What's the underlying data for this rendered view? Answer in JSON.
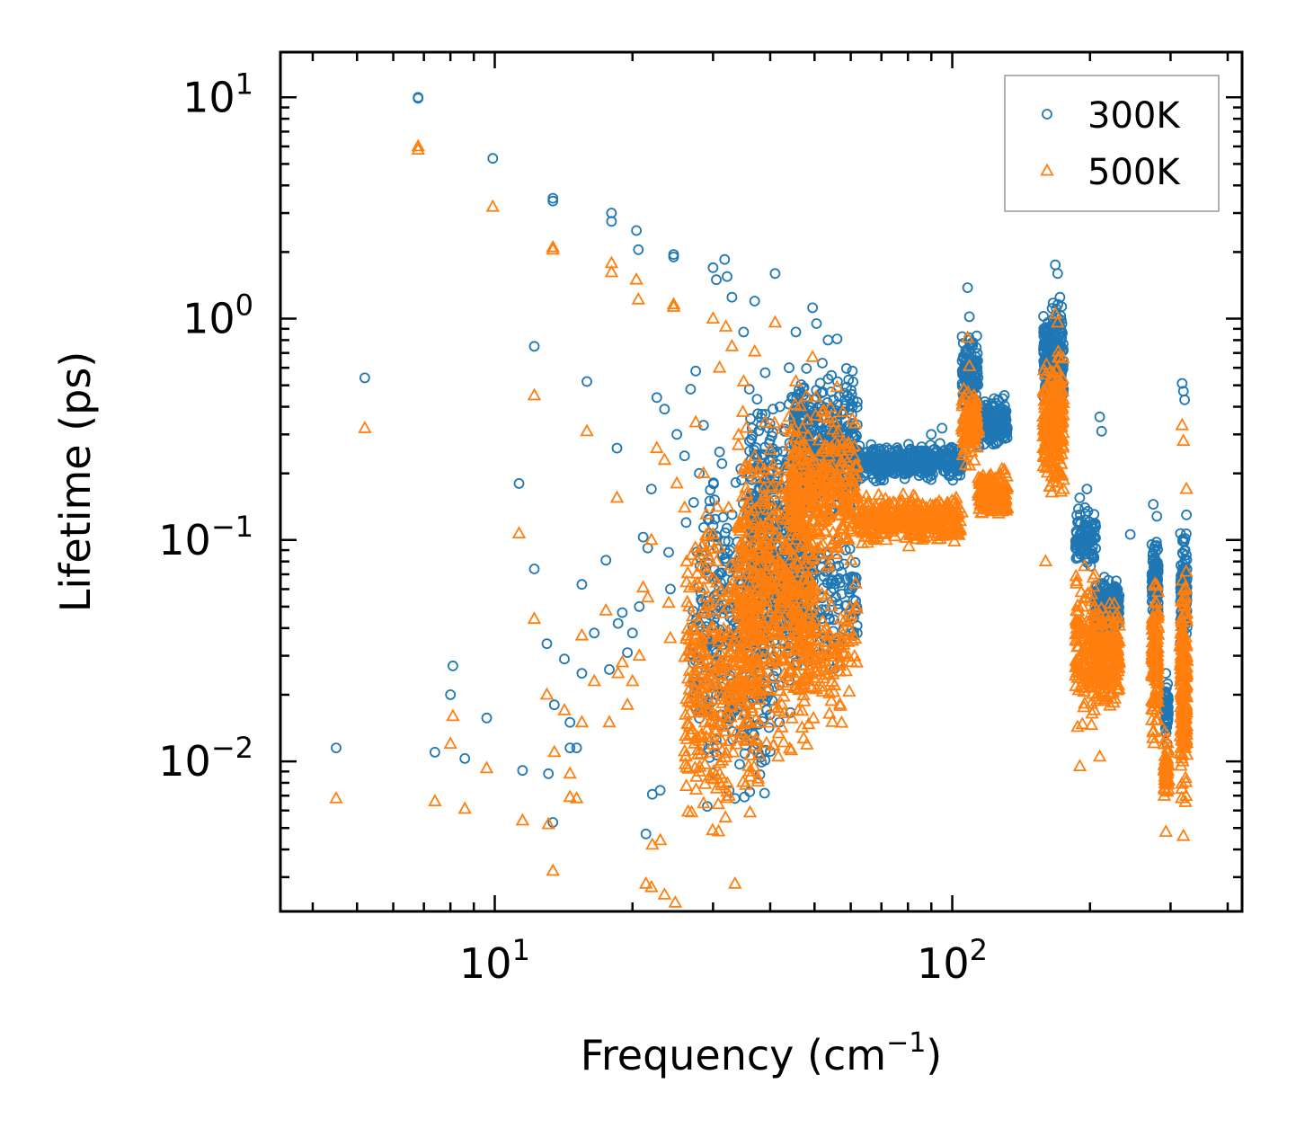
{
  "chart_data": {
    "type": "scatter",
    "title": "",
    "xlabel": "Frequency (cm",
    "xlabel_sup": "−1",
    "xlabel_close": ")",
    "ylabel": "Lifetime (ps)",
    "xscale": "log",
    "yscale": "log",
    "xlim": [
      3.4,
      430
    ],
    "ylim": [
      0.0021,
      16
    ],
    "x_ticks": [
      {
        "base": "10",
        "exp": "1",
        "value": 10
      },
      {
        "base": "10",
        "exp": "2",
        "value": 100
      }
    ],
    "y_ticks": [
      {
        "base": "10",
        "exp": "1",
        "value": 10
      },
      {
        "base": "10",
        "exp": "0",
        "value": 1
      },
      {
        "base": "10",
        "exp": "−1",
        "value": 0.1
      },
      {
        "base": "10",
        "exp": "−2",
        "value": 0.01
      }
    ],
    "legend_position": "upper-right",
    "series": [
      {
        "name": "300K",
        "marker": "circle",
        "color": "#1f77b4",
        "points": [
          [
            4.5,
            0.0115
          ],
          [
            5.2,
            0.54
          ],
          [
            6.8,
            10.0
          ],
          [
            6.8,
            9.9
          ],
          [
            7.4,
            0.011
          ],
          [
            8.0,
            0.02
          ],
          [
            8.1,
            0.027
          ],
          [
            8.6,
            0.0103
          ],
          [
            9.6,
            0.0157
          ],
          [
            9.9,
            5.3
          ],
          [
            11.3,
            0.18
          ],
          [
            11.5,
            0.0091
          ],
          [
            12.2,
            0.75
          ],
          [
            12.2,
            0.074
          ],
          [
            13.0,
            0.034
          ],
          [
            13.1,
            0.0088
          ],
          [
            13.4,
            3.5
          ],
          [
            13.4,
            3.4
          ],
          [
            13.4,
            0.0053
          ],
          [
            13.5,
            0.018
          ],
          [
            14.2,
            0.029
          ],
          [
            14.6,
            0.0115
          ],
          [
            14.6,
            0.015
          ],
          [
            15.1,
            0.0115
          ],
          [
            15.5,
            0.025
          ],
          [
            15.5,
            0.063
          ],
          [
            15.9,
            0.52
          ],
          [
            16.5,
            0.038
          ],
          [
            17.5,
            0.081
          ],
          [
            17.8,
            0.026
          ],
          [
            18.0,
            3.0
          ],
          [
            18.0,
            2.75
          ],
          [
            18.5,
            0.26
          ],
          [
            18.6,
            0.042
          ],
          [
            19.0,
            0.047
          ],
          [
            19.5,
            0.031
          ],
          [
            20.0,
            0.038
          ],
          [
            20.4,
            2.5
          ],
          [
            20.6,
            2.05
          ],
          [
            20.7,
            0.05
          ],
          [
            21.1,
            0.103
          ],
          [
            21.4,
            0.0047
          ],
          [
            21.6,
            0.092
          ],
          [
            22.0,
            0.17
          ],
          [
            22.1,
            0.0071
          ],
          [
            22.6,
            0.44
          ],
          [
            23.0,
            0.0074
          ],
          [
            23.5,
            0.39
          ],
          [
            24.0,
            0.088
          ],
          [
            24.2,
            0.06
          ],
          [
            24.6,
            1.95
          ],
          [
            24.6,
            1.9
          ],
          [
            25.0,
            0.3
          ],
          [
            26.0,
            0.24
          ],
          [
            26.2,
            0.12
          ],
          [
            26.8,
            0.48
          ],
          [
            27.5,
            0.58
          ],
          [
            28.0,
            0.2
          ],
          [
            28.6,
            0.33
          ],
          [
            29.5,
            0.15
          ],
          [
            30.0,
            1.7
          ],
          [
            30.5,
            1.5
          ],
          [
            31.0,
            0.25
          ],
          [
            31.8,
            1.85
          ],
          [
            32.2,
            1.55
          ],
          [
            33.0,
            1.25
          ],
          [
            33.5,
            0.0068
          ],
          [
            34.5,
            0.21
          ],
          [
            35.0,
            0.87
          ],
          [
            36.0,
            0.48
          ],
          [
            36.5,
            0.32
          ],
          [
            37.0,
            1.2
          ],
          [
            38.0,
            0.17
          ],
          [
            39.0,
            0.57
          ],
          [
            40.0,
            0.23
          ],
          [
            41.0,
            1.6
          ],
          [
            42.0,
            0.4
          ],
          [
            43.0,
            0.31
          ],
          [
            44.0,
            0.6
          ],
          [
            45.5,
            0.87
          ],
          [
            47.0,
            0.28
          ],
          [
            48.0,
            0.21
          ],
          [
            49.5,
            1.12
          ],
          [
            50.5,
            0.95
          ],
          [
            52.0,
            0.63
          ],
          [
            53.5,
            0.8
          ],
          [
            55.0,
            0.43
          ],
          [
            56.0,
            0.81
          ],
          [
            57.5,
            0.28
          ],
          [
            59.0,
            0.45
          ],
          [
            60.5,
            0.58
          ],
          [
            62.0,
            0.42
          ],
          [
            66.0,
            0.21
          ],
          [
            70.0,
            0.19
          ],
          [
            75.0,
            0.23
          ],
          [
            80.0,
            0.215
          ],
          [
            85.0,
            0.25
          ],
          [
            90.0,
            0.3
          ],
          [
            95.0,
            0.32
          ],
          [
            100.0,
            0.26
          ],
          [
            104.0,
            0.22
          ],
          [
            108.0,
            1.38
          ],
          [
            109.0,
            1.02
          ],
          [
            111.0,
            0.78
          ],
          [
            114.0,
            0.27
          ],
          [
            118.0,
            0.34
          ],
          [
            122.0,
            0.4
          ],
          [
            126.0,
            0.43
          ],
          [
            130.0,
            0.45
          ],
          [
            160.0,
            0.87
          ],
          [
            163.0,
            0.63
          ],
          [
            166.0,
            0.53
          ],
          [
            168.0,
            1.75
          ],
          [
            170.0,
            1.6
          ],
          [
            172.0,
            1.25
          ],
          [
            174.0,
            0.86
          ],
          [
            190.0,
            0.155
          ],
          [
            195.0,
            0.14
          ],
          [
            197.0,
            0.17
          ],
          [
            203.0,
            0.085
          ],
          [
            210.0,
            0.36
          ],
          [
            212.0,
            0.31
          ],
          [
            215.0,
            0.068
          ],
          [
            220.0,
            0.056
          ],
          [
            230.0,
            0.052
          ],
          [
            245.0,
            0.106
          ],
          [
            275.0,
            0.145
          ],
          [
            280.0,
            0.128
          ],
          [
            293.0,
            0.025
          ],
          [
            295.0,
            0.012
          ],
          [
            318.0,
            0.51
          ],
          [
            320.0,
            0.47
          ],
          [
            322.0,
            0.43
          ],
          [
            325.0,
            0.13
          ]
        ],
        "clusters": [
          {
            "x": [
              27,
              40
            ],
            "y": [
              0.004,
              0.35
            ],
            "n": 340
          },
          {
            "x": [
              36,
              48
            ],
            "y": [
              0.012,
              0.8
            ],
            "n": 450
          },
          {
            "x": [
              45,
              62
            ],
            "y": [
              0.1,
              0.7
            ],
            "n": 340
          },
          {
            "x": [
              45,
              62
            ],
            "y": [
              0.02,
              0.15
            ],
            "n": 150
          },
          {
            "x": [
              62,
              105
            ],
            "y": [
              0.18,
              0.28
            ],
            "n": 420
          },
          {
            "x": [
              105,
              114
            ],
            "y": [
              0.35,
              0.95
            ],
            "n": 120
          },
          {
            "x": [
              114,
              132
            ],
            "y": [
              0.25,
              0.45
            ],
            "n": 200
          },
          {
            "x": [
              158,
              175
            ],
            "y": [
              0.35,
              1.3
            ],
            "n": 220
          },
          {
            "x": [
              186,
              206
            ],
            "y": [
              0.07,
              0.15
            ],
            "n": 100
          },
          {
            "x": [
              205,
              232
            ],
            "y": [
              0.035,
              0.07
            ],
            "n": 260
          },
          {
            "x": [
              273,
              282
            ],
            "y": [
              0.04,
              0.11
            ],
            "n": 110
          },
          {
            "x": [
              290,
              297
            ],
            "y": [
              0.012,
              0.025
            ],
            "n": 50
          },
          {
            "x": [
              315,
              326
            ],
            "y": [
              0.03,
              0.12
            ],
            "n": 120
          }
        ]
      },
      {
        "name": "500K",
        "marker": "triangle",
        "color": "#ff7f0e",
        "points": [
          [
            4.5,
            0.0068
          ],
          [
            5.2,
            0.32
          ],
          [
            6.8,
            6.0
          ],
          [
            6.8,
            5.8
          ],
          [
            7.4,
            0.0066
          ],
          [
            8.0,
            0.012
          ],
          [
            8.1,
            0.016
          ],
          [
            8.6,
            0.0061
          ],
          [
            9.6,
            0.0093
          ],
          [
            9.9,
            3.2
          ],
          [
            11.3,
            0.107
          ],
          [
            11.5,
            0.0054
          ],
          [
            12.2,
            0.45
          ],
          [
            12.2,
            0.044
          ],
          [
            13.0,
            0.02
          ],
          [
            13.1,
            0.0052
          ],
          [
            13.4,
            2.1
          ],
          [
            13.4,
            2.05
          ],
          [
            13.4,
            0.0032
          ],
          [
            13.5,
            0.011
          ],
          [
            14.2,
            0.017
          ],
          [
            14.6,
            0.0069
          ],
          [
            14.6,
            0.0088
          ],
          [
            15.1,
            0.0068
          ],
          [
            15.5,
            0.015
          ],
          [
            15.5,
            0.037
          ],
          [
            15.9,
            0.31
          ],
          [
            16.5,
            0.023
          ],
          [
            17.5,
            0.048
          ],
          [
            17.8,
            0.015
          ],
          [
            18.0,
            1.78
          ],
          [
            18.0,
            1.62
          ],
          [
            18.5,
            0.155
          ],
          [
            18.6,
            0.025
          ],
          [
            19.0,
            0.028
          ],
          [
            19.5,
            0.018
          ],
          [
            20.0,
            0.023
          ],
          [
            20.4,
            1.5
          ],
          [
            20.6,
            1.22
          ],
          [
            20.7,
            0.03
          ],
          [
            21.1,
            0.061
          ],
          [
            21.4,
            0.0028
          ],
          [
            21.6,
            0.055
          ],
          [
            22.0,
            0.1
          ],
          [
            22.1,
            0.0042
          ],
          [
            22.6,
            0.26
          ],
          [
            23.0,
            0.0044
          ],
          [
            23.5,
            0.23
          ],
          [
            24.0,
            0.052
          ],
          [
            24.2,
            0.036
          ],
          [
            24.6,
            1.16
          ],
          [
            24.6,
            1.13
          ],
          [
            24.8,
            0.0023
          ],
          [
            25.0,
            0.18
          ],
          [
            23.5,
            0.0025
          ],
          [
            22.0,
            0.0027
          ],
          [
            26.0,
            0.14
          ],
          [
            27.5,
            0.34
          ],
          [
            28.6,
            0.2
          ],
          [
            30.0,
            1.0
          ],
          [
            31.0,
            0.6
          ],
          [
            32.0,
            0.92
          ],
          [
            33.0,
            0.75
          ],
          [
            33.5,
            0.0028
          ],
          [
            35.0,
            0.52
          ],
          [
            37.0,
            0.71
          ],
          [
            39.0,
            0.34
          ],
          [
            41.0,
            0.96
          ],
          [
            44.0,
            0.36
          ],
          [
            45.5,
            0.52
          ],
          [
            49.5,
            0.67
          ],
          [
            52.0,
            0.38
          ],
          [
            56.0,
            0.49
          ],
          [
            60.5,
            0.35
          ],
          [
            108.0,
            0.82
          ],
          [
            109.0,
            0.61
          ],
          [
            168.0,
            1.05
          ],
          [
            170.0,
            0.96
          ],
          [
            160.0,
            0.08
          ],
          [
            210.0,
            0.0105
          ],
          [
            190.0,
            0.0095
          ],
          [
            318.0,
            0.33
          ],
          [
            320.0,
            0.28
          ],
          [
            325.0,
            0.17
          ],
          [
            293.0,
            0.0048
          ],
          [
            320.0,
            0.0046
          ]
        ],
        "clusters": [
          {
            "x": [
              26,
              38
            ],
            "y": [
              0.0035,
              0.2
            ],
            "n": 380
          },
          {
            "x": [
              34,
              50
            ],
            "y": [
              0.007,
              0.5
            ],
            "n": 520
          },
          {
            "x": [
              44,
              62
            ],
            "y": [
              0.06,
              0.5
            ],
            "n": 320
          },
          {
            "x": [
              45,
              62
            ],
            "y": [
              0.012,
              0.08
            ],
            "n": 130
          },
          {
            "x": [
              62,
              105
            ],
            "y": [
              0.09,
              0.17
            ],
            "n": 380
          },
          {
            "x": [
              105,
              114
            ],
            "y": [
              0.2,
              0.55
            ],
            "n": 120
          },
          {
            "x": [
              114,
              132
            ],
            "y": [
              0.12,
              0.22
            ],
            "n": 170
          },
          {
            "x": [
              158,
              175
            ],
            "y": [
              0.13,
              0.8
            ],
            "n": 240
          },
          {
            "x": [
              186,
              206
            ],
            "y": [
              0.012,
              0.09
            ],
            "n": 140
          },
          {
            "x": [
              205,
              232
            ],
            "y": [
              0.015,
              0.06
            ],
            "n": 200
          },
          {
            "x": [
              273,
              282
            ],
            "y": [
              0.01,
              0.09
            ],
            "n": 130
          },
          {
            "x": [
              290,
              297
            ],
            "y": [
              0.006,
              0.014
            ],
            "n": 60
          },
          {
            "x": [
              315,
              326
            ],
            "y": [
              0.005,
              0.09
            ],
            "n": 220
          }
        ]
      }
    ]
  }
}
